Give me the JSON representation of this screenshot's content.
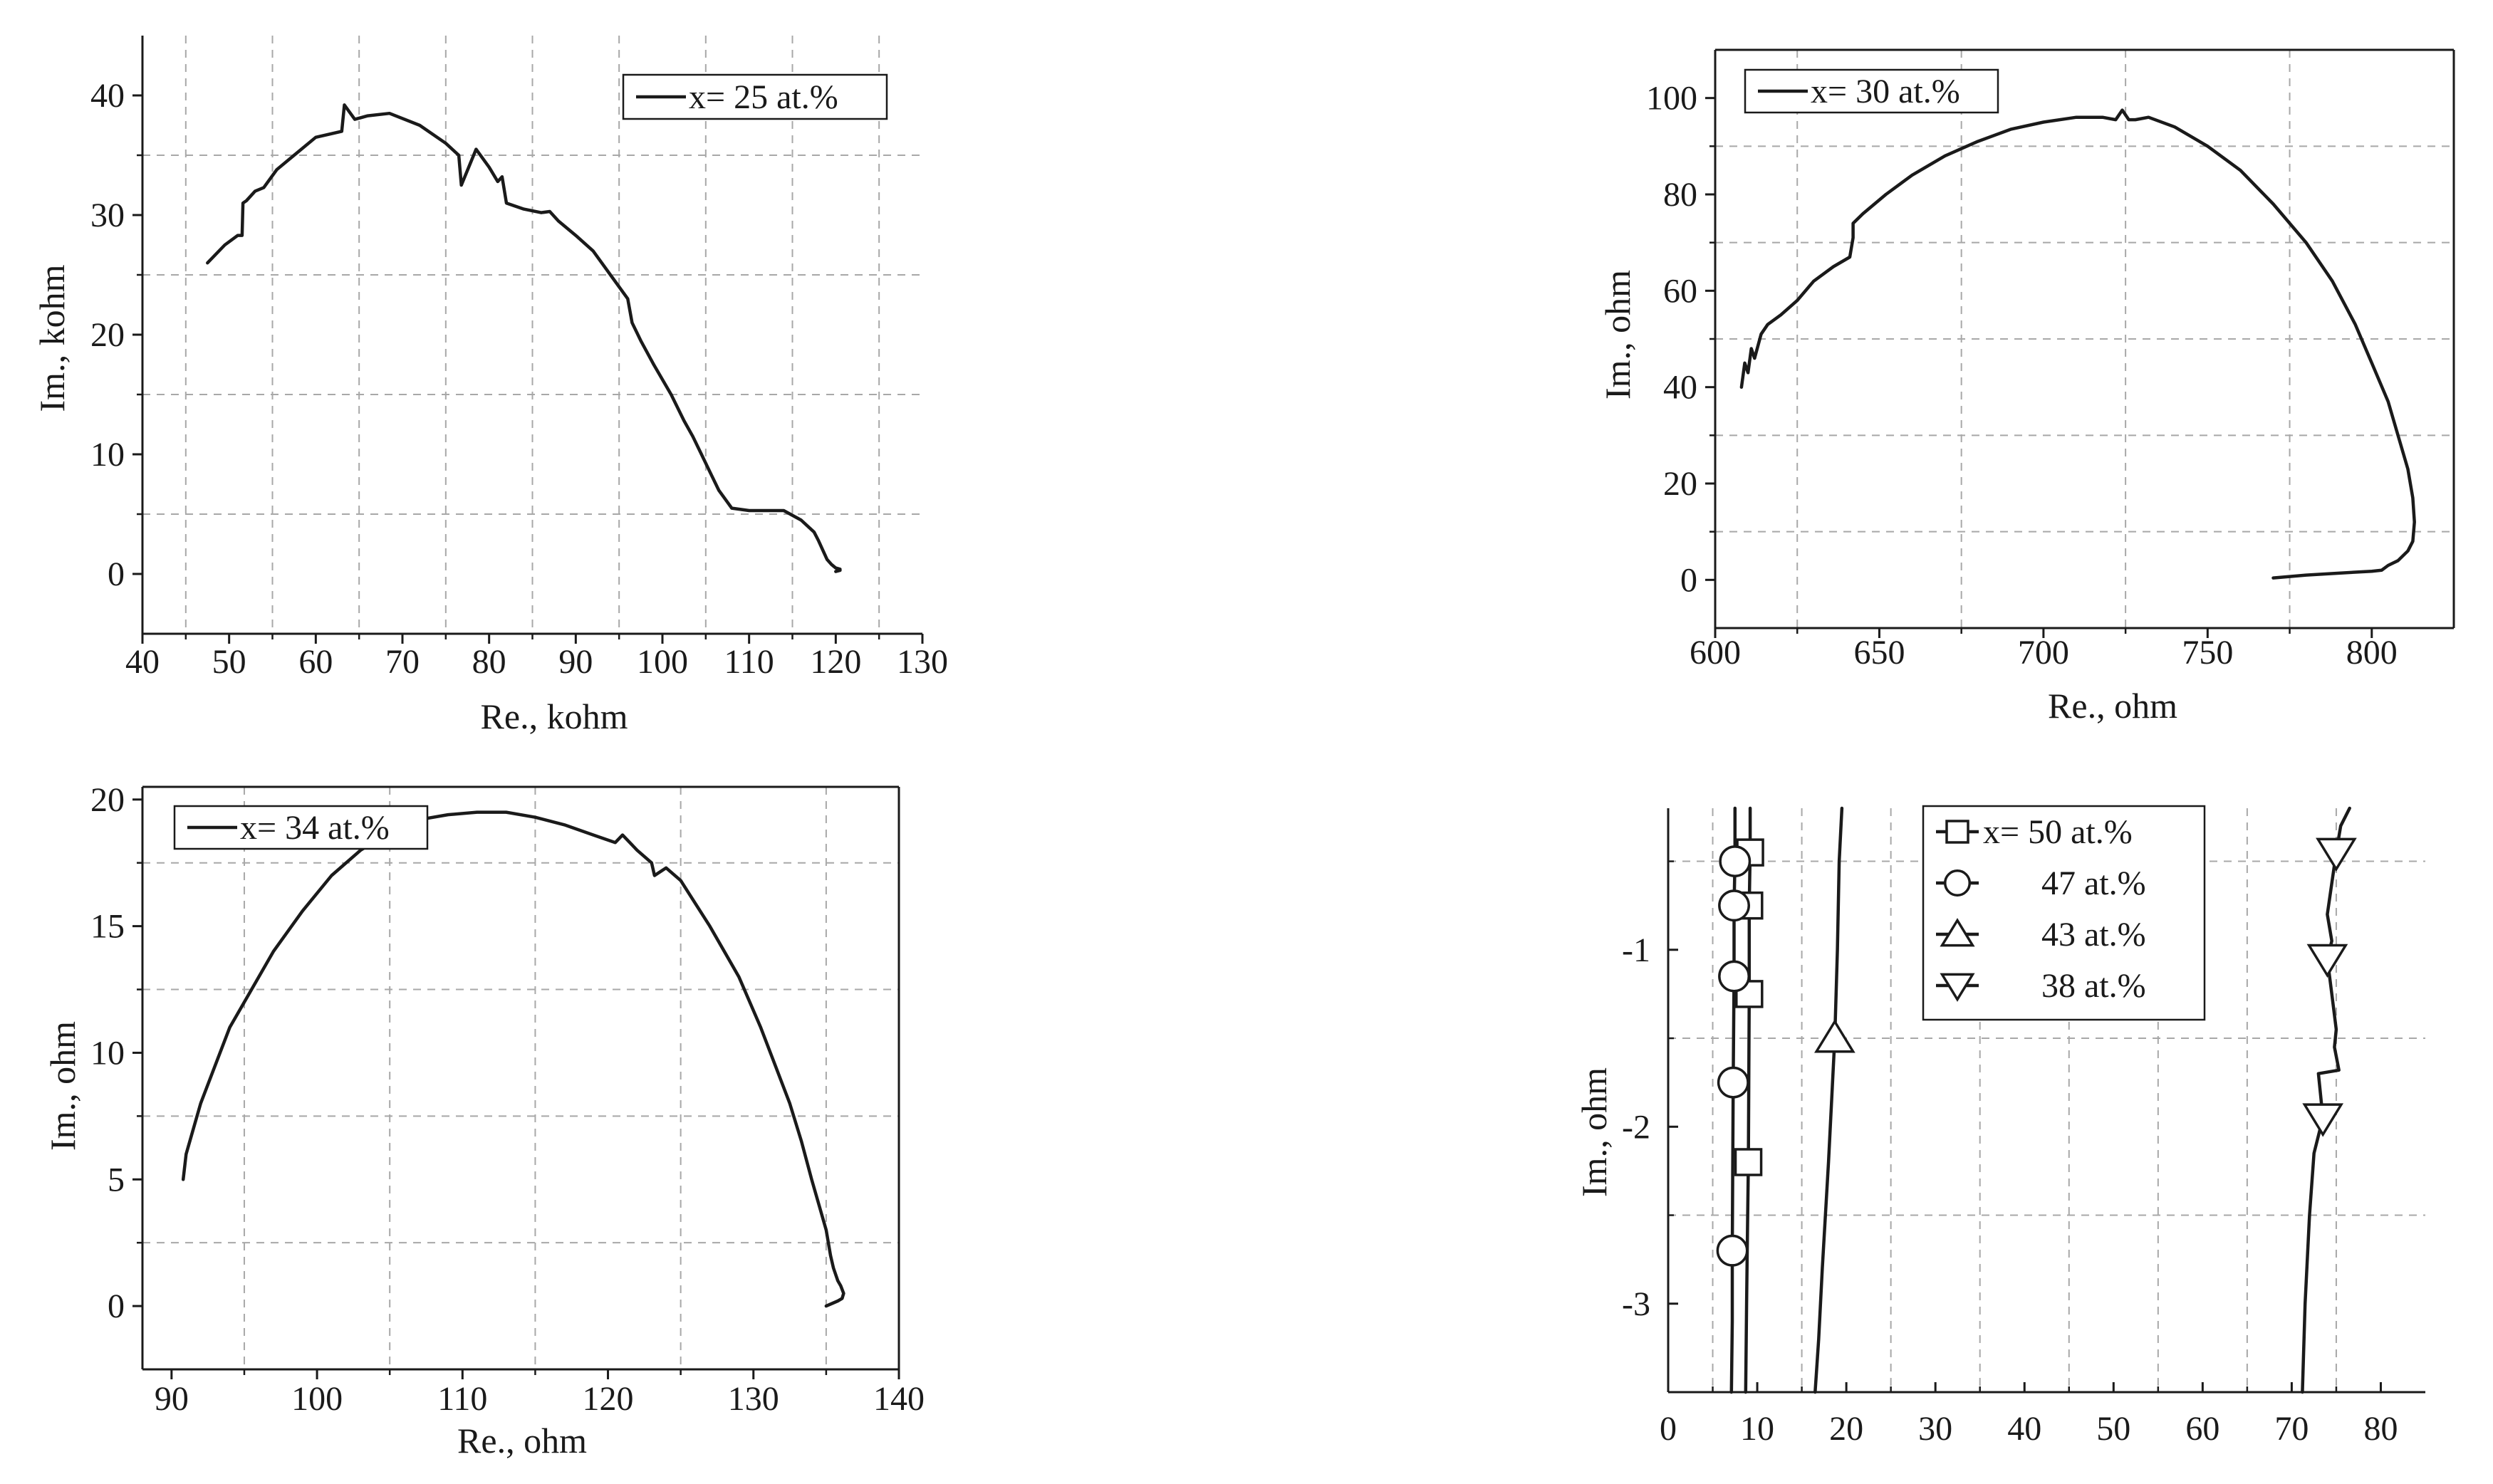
{
  "colors": {
    "ink": "#1a1a1a",
    "grid": "#a8a8a8",
    "background": "#ffffff"
  },
  "chart_data": [
    {
      "id": "panel-x25",
      "type": "line",
      "xlabel": "Re., kohm",
      "ylabel": "Im., kohm",
      "xlim": [
        40,
        130
      ],
      "ylim": [
        -5,
        45
      ],
      "xticks": [
        40,
        50,
        60,
        70,
        80,
        90,
        100,
        110,
        120,
        130
      ],
      "yticks": [
        0,
        10,
        20,
        30,
        40
      ],
      "xgrid": [
        45,
        55,
        65,
        75,
        85,
        95,
        105,
        115,
        125
      ],
      "ygrid": [
        5,
        15,
        25,
        35
      ],
      "legend": {
        "position": "top-right"
      },
      "series": [
        {
          "name": "x= 25 at.%",
          "marker": "none",
          "x": [
            47.5,
            49.5,
            51,
            51.5,
            51.6,
            52,
            53,
            54,
            55.5,
            57.5,
            60,
            63,
            63.3,
            64,
            64.5,
            66,
            68.5,
            72,
            75,
            76.5,
            76.8,
            78.5,
            80,
            81,
            81.5,
            82,
            84,
            86,
            87,
            88,
            90,
            92,
            94,
            96,
            96.5,
            97.5,
            99,
            101,
            102.5,
            103.5,
            104.5,
            105.5,
            106.5,
            108,
            110,
            112,
            114,
            116,
            117.5,
            118,
            118.5,
            119,
            119.5,
            120,
            120.5,
            120,
            120.5
          ],
          "y": [
            26,
            27.5,
            28.3,
            28.3,
            31,
            31.2,
            32,
            32.3,
            33.8,
            35,
            36.5,
            37,
            39.2,
            38.5,
            38,
            38.3,
            38.5,
            37.5,
            36,
            35,
            32.5,
            35.5,
            34,
            32.8,
            33.2,
            31,
            30.5,
            30.2,
            30.3,
            29.5,
            28.3,
            27,
            25,
            23,
            21,
            19.5,
            17.5,
            15,
            12.8,
            11.5,
            10,
            8.5,
            7,
            5.5,
            5.3,
            5.3,
            5.3,
            4.5,
            3.5,
            2.8,
            2,
            1.2,
            0.8,
            0.5,
            0.4,
            0.2,
            0.3
          ]
        }
      ]
    },
    {
      "id": "panel-x30",
      "type": "line",
      "xlabel": "Re., ohm",
      "ylabel": "Im., ohm",
      "xlim": [
        600,
        825
      ],
      "ylim": [
        -10,
        110
      ],
      "xticks": [
        600,
        650,
        700,
        750,
        800
      ],
      "yticks": [
        0,
        20,
        40,
        60,
        80,
        100
      ],
      "xgrid": [
        625,
        675,
        725,
        775
      ],
      "ygrid": [
        10,
        30,
        50,
        70,
        90
      ],
      "legend": {
        "position": "top-left"
      },
      "series": [
        {
          "name": "x= 30 at.%",
          "marker": "none",
          "x": [
            608,
            609,
            610,
            611,
            612,
            614,
            616,
            620,
            625,
            630,
            636,
            641,
            642,
            642,
            645,
            652,
            660,
            670,
            680,
            690,
            700,
            710,
            718,
            722,
            724,
            726,
            728,
            732,
            740,
            750,
            760,
            770,
            780,
            788,
            795,
            800,
            805,
            808,
            811,
            812.5,
            813,
            812.5,
            811,
            808,
            805,
            803,
            800,
            795,
            790,
            780,
            775,
            770
          ],
          "y": [
            40,
            45,
            43,
            48,
            46,
            51,
            53,
            55,
            58,
            62,
            65,
            67,
            71,
            74,
            76,
            80,
            84,
            88,
            91,
            93.5,
            95,
            96,
            96,
            95.5,
            97.5,
            95.5,
            95.5,
            96,
            94,
            90,
            85,
            78,
            70,
            62,
            53,
            45,
            37,
            30,
            23,
            17,
            12,
            8,
            6,
            4,
            3,
            2,
            1.8,
            1.6,
            1.4,
            1,
            0.7,
            0.4
          ]
        }
      ]
    },
    {
      "id": "panel-x34",
      "type": "line",
      "xlabel": "Re., ohm",
      "ylabel": "Im., ohm",
      "xlim": [
        88,
        140
      ],
      "ylim": [
        -2.5,
        20.5
      ],
      "xticks": [
        90,
        100,
        110,
        120,
        130,
        140
      ],
      "yticks": [
        0,
        5,
        10,
        15,
        20
      ],
      "xgrid": [
        95,
        105,
        115,
        125,
        135
      ],
      "ygrid": [
        2.5,
        7.5,
        12.5,
        17.5
      ],
      "legend": {
        "position": "top-left"
      },
      "series": [
        {
          "name": "x= 34 at.%",
          "marker": "none",
          "x": [
            90.8,
            91,
            91.5,
            92,
            93,
            94,
            95.5,
            97,
            99,
            101,
            103,
            105,
            107,
            109,
            111,
            113,
            115,
            117,
            119,
            120.5,
            121,
            122,
            123,
            123.2,
            124,
            125,
            127,
            129,
            130.5,
            131.5,
            132.5,
            133.3,
            134,
            134.5,
            135,
            135.3,
            135.5,
            135.8,
            136,
            136.2,
            136.1,
            135.8,
            135.4,
            135
          ],
          "y": [
            5,
            6,
            7,
            8,
            9.5,
            11,
            12.5,
            14,
            15.6,
            17,
            18,
            18.7,
            19.2,
            19.4,
            19.5,
            19.5,
            19.3,
            19,
            18.6,
            18.3,
            18.6,
            18,
            17.5,
            17,
            17.3,
            16.8,
            15,
            13,
            11,
            9.5,
            8,
            6.5,
            5,
            4,
            3,
            2,
            1.5,
            1,
            0.8,
            0.5,
            0.3,
            0.2,
            0.1,
            0
          ]
        }
      ]
    },
    {
      "id": "panel-x38-50",
      "type": "line",
      "xlabel": "",
      "ylabel": "Im., ohm",
      "xlim": [
        0,
        85
      ],
      "ylim": [
        -3.5,
        -0.2
      ],
      "xticks": [
        0,
        10,
        20,
        30,
        40,
        50,
        60,
        70,
        80
      ],
      "yticks": [
        -1,
        -2,
        -3
      ],
      "xgrid": [
        5,
        15,
        25,
        35,
        45,
        55,
        65,
        75
      ],
      "ygrid": [
        -0.5,
        -1.5,
        -2.5
      ],
      "legend": {
        "position": "top-center"
      },
      "series": [
        {
          "name": "x= 50 at.%",
          "marker": "square",
          "x": [
            9.2,
            9.2,
            9.1,
            9.1,
            9,
            8.9,
            8.8,
            8.7
          ],
          "y": [
            -0.2,
            -0.45,
            -0.75,
            -1.25,
            -2.2,
            -2.6,
            -3,
            -3.5
          ],
          "marker_indices": [
            1,
            2,
            3,
            4
          ]
        },
        {
          "name": "47 at.%",
          "marker": "circle",
          "x": [
            7.5,
            7.5,
            7.4,
            7.4,
            7.3,
            7.2,
            7.2,
            7.1
          ],
          "y": [
            -0.2,
            -0.5,
            -0.75,
            -1.15,
            -1.75,
            -2.7,
            -3.1,
            -3.5
          ],
          "marker_indices": [
            1,
            2,
            3,
            4,
            5
          ]
        },
        {
          "name": "43 at.%",
          "marker": "triangle-up",
          "x": [
            19.5,
            19.2,
            19,
            18.7,
            18,
            17.3,
            16.9,
            16.5
          ],
          "y": [
            -0.2,
            -0.5,
            -1,
            -1.5,
            -2.2,
            -2.8,
            -3.2,
            -3.5
          ],
          "marker_indices": [
            3
          ]
        },
        {
          "name": "38 at.%",
          "marker": "triangle-down",
          "x": [
            76.5,
            75.5,
            75,
            74,
            74.5,
            74,
            74.5,
            75,
            74.8,
            75.3,
            73,
            73.5,
            72.5,
            72,
            71.5,
            71.2
          ],
          "y": [
            -0.2,
            -0.3,
            -0.45,
            -0.8,
            -0.95,
            -1.05,
            -1.25,
            -1.45,
            -1.55,
            -1.68,
            -1.7,
            -1.95,
            -2.15,
            -2.5,
            -3,
            -3.5
          ],
          "marker_indices": [
            2,
            5,
            11
          ]
        }
      ]
    }
  ]
}
